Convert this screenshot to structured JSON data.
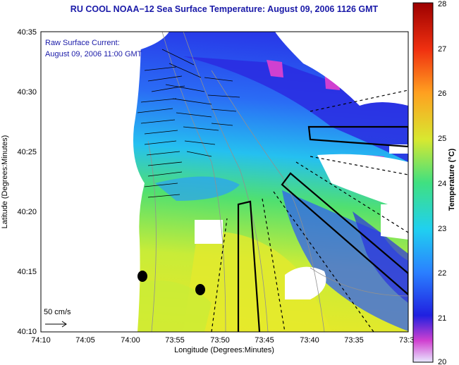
{
  "title": "RU COOL  NOAA−12  Sea Surface Temperature:  August 09, 2006 1126 GMT",
  "overlay": {
    "line1": "Raw Surface Current:",
    "line2": "August 09, 2006 11:00 GMT",
    "scale_label": "50 cm/s"
  },
  "axes": {
    "xlabel": "Longitude (Degrees:Minutes)",
    "ylabel": "Latitude (Degrees:Minutes)",
    "xticks": [
      "74:10",
      "74:05",
      "74:00",
      "73:55",
      "73:50",
      "73:45",
      "73:40",
      "73:35",
      "73:3"
    ],
    "yticks": [
      "40:35",
      "40:30",
      "40:25",
      "40:20",
      "40:15",
      "40:10"
    ]
  },
  "colorbar": {
    "label": "Temperature (°C)",
    "ticks": [
      "28",
      "27",
      "26",
      "25",
      "24",
      "23",
      "22",
      "21",
      "20"
    ],
    "min": 20,
    "max": 28
  },
  "colors": {
    "land": "#ffffff",
    "warm": "#e6e62a",
    "cool": "#2e3cf0",
    "title": "#1a1aa8"
  }
}
